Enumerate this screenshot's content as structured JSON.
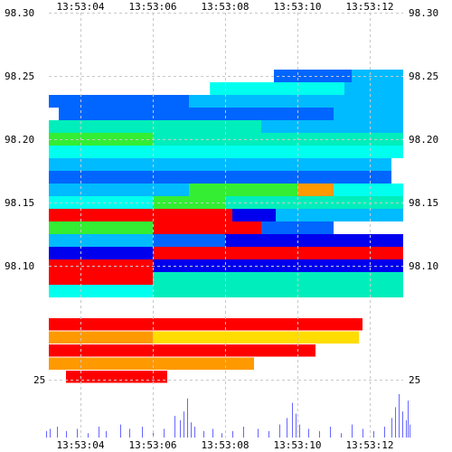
{
  "chart_data": {
    "type": "heatmap",
    "title": "",
    "xlabel": "",
    "ylabel": "",
    "x_ticks": [
      "13:53:04",
      "13:53:06",
      "13:53:08",
      "13:53:10",
      "13:53:12"
    ],
    "y_ticks_left": [
      "98.30",
      "98.25",
      "98.20",
      "98.15",
      "98.10"
    ],
    "y_ticks_right": [
      "98.30",
      "98.25",
      "98.20",
      "98.15",
      "98.10"
    ],
    "y_range": [
      98.07,
      98.3
    ],
    "volume_axis_label_left": "25",
    "volume_axis_label_right": "25",
    "grid": true,
    "colors": {
      "grid": "#c8c8c8",
      "red": "#ff0000",
      "orange": "#ff9900",
      "yellow": "#ffdd00",
      "green": "#33ee33",
      "cyan": "#00ffee",
      "teal": "#00eebb",
      "sky": "#00bbff",
      "blue": "#0066ff",
      "navy": "#0000ee",
      "volume": "#6666ff"
    },
    "rows": [
      {
        "price": 98.28,
        "segments": [
          [
            13.03,
            13.13,
            "sky"
          ]
        ]
      },
      {
        "price": 98.27,
        "segments": [
          [
            12.95,
            13.13,
            "blue"
          ]
        ]
      },
      {
        "price": 98.26,
        "segments": [
          [
            12.95,
            13.13,
            "teal"
          ]
        ]
      },
      {
        "price": 98.25,
        "segments": [
          [
            9.35,
            11.5,
            "blue"
          ],
          [
            11.5,
            13.13,
            "sky"
          ]
        ]
      },
      {
        "price": 98.24,
        "segments": [
          [
            7.58,
            11.3,
            "cyan"
          ],
          [
            11.3,
            13.13,
            "sky"
          ]
        ]
      },
      {
        "price": 98.23,
        "segments": [
          [
            3.0,
            7.0,
            "blue"
          ],
          [
            7.0,
            13.13,
            "sky"
          ]
        ]
      },
      {
        "price": 98.22,
        "segments": [
          [
            3.4,
            5.4,
            "blue"
          ],
          [
            5.4,
            11.0,
            "blue"
          ],
          [
            11.0,
            13.13,
            "sky"
          ]
        ]
      },
      {
        "price": 98.21,
        "segments": [
          [
            3.0,
            9.0,
            "teal"
          ],
          [
            9.0,
            13.13,
            "sky"
          ]
        ]
      },
      {
        "price": 98.2,
        "segments": [
          [
            3.0,
            6.0,
            "green"
          ],
          [
            6.0,
            13.13,
            "teal"
          ]
        ]
      },
      {
        "price": 98.19,
        "segments": [
          [
            3.0,
            13.13,
            "cyan"
          ]
        ]
      },
      {
        "price": 98.18,
        "segments": [
          [
            3.0,
            12.6,
            "sky"
          ]
        ]
      },
      {
        "price": 98.17,
        "segments": [
          [
            3.0,
            12.6,
            "blue"
          ]
        ]
      },
      {
        "price": 98.16,
        "segments": [
          [
            3.0,
            7.0,
            "sky"
          ],
          [
            7.0,
            10.0,
            "green"
          ],
          [
            10.0,
            11.0,
            "orange"
          ],
          [
            11.0,
            13.13,
            "cyan"
          ]
        ]
      },
      {
        "price": 98.15,
        "segments": [
          [
            3.0,
            6.0,
            "cyan"
          ],
          [
            6.0,
            8.0,
            "green"
          ],
          [
            8.0,
            13.13,
            "teal"
          ]
        ]
      },
      {
        "price": 98.14,
        "segments": [
          [
            3.0,
            5.4,
            "red"
          ],
          [
            5.4,
            8.2,
            "red"
          ],
          [
            8.2,
            9.4,
            "navy"
          ],
          [
            9.4,
            13.13,
            "sky"
          ]
        ]
      },
      {
        "price": 98.13,
        "segments": [
          [
            3.0,
            6.0,
            "green"
          ],
          [
            6.0,
            9.0,
            "red"
          ],
          [
            9.0,
            11.0,
            "blue"
          ]
        ]
      },
      {
        "price": 98.12,
        "segments": [
          [
            3.0,
            6.0,
            "sky"
          ],
          [
            6.0,
            8.0,
            "blue"
          ],
          [
            8.0,
            13.13,
            "navy"
          ]
        ]
      },
      {
        "price": 98.11,
        "segments": [
          [
            3.0,
            6.0,
            "navy"
          ],
          [
            6.0,
            8.8,
            "red"
          ],
          [
            8.8,
            13.13,
            "red"
          ]
        ]
      },
      {
        "price": 98.1,
        "segments": [
          [
            3.0,
            6.0,
            "red"
          ],
          [
            6.0,
            13.13,
            "navy"
          ]
        ]
      },
      {
        "price": 98.09,
        "segments": [
          [
            3.0,
            6.0,
            "red"
          ],
          [
            6.0,
            13.13,
            "teal"
          ]
        ]
      },
      {
        "price": 98.08,
        "segments": [
          [
            3.0,
            6.0,
            "cyan"
          ],
          [
            6.0,
            13.13,
            "teal"
          ]
        ]
      }
    ],
    "lower_rows": [
      {
        "segments": [
          [
            3.0,
            11.8,
            "red"
          ]
        ]
      },
      {
        "segments": [
          [
            3.0,
            6.0,
            "orange"
          ],
          [
            6.0,
            11.7,
            "yellow"
          ]
        ]
      },
      {
        "segments": [
          [
            3.0,
            10.5,
            "red"
          ]
        ]
      },
      {
        "segments": [
          [
            3.0,
            8.8,
            "orange"
          ]
        ]
      },
      {
        "segments": [
          [
            3.6,
            6.4,
            "red"
          ]
        ]
      }
    ],
    "volume_x": [
      3.05,
      3.15,
      3.35,
      3.6,
      3.9,
      4.2,
      4.5,
      4.7,
      5.1,
      5.35,
      5.7,
      6.0,
      6.3,
      6.6,
      6.75,
      6.85,
      6.95,
      7.05,
      7.15,
      7.4,
      7.65,
      7.9,
      8.2,
      8.5,
      8.9,
      9.2,
      9.5,
      9.7,
      9.85,
      9.95,
      10.05,
      10.3,
      10.6,
      10.9,
      11.2,
      11.5,
      11.8,
      12.1,
      12.4,
      12.6,
      12.7,
      12.8,
      12.9,
      13.0,
      13.05,
      13.1
    ],
    "volume_values": [
      3,
      4,
      5,
      3,
      4,
      2,
      5,
      3,
      6,
      4,
      5,
      3,
      4,
      10,
      8,
      12,
      18,
      7,
      5,
      3,
      4,
      2,
      3,
      5,
      4,
      3,
      6,
      9,
      16,
      11,
      6,
      4,
      3,
      5,
      2,
      6,
      4,
      3,
      5,
      9,
      14,
      20,
      12,
      8,
      17,
      6
    ]
  }
}
